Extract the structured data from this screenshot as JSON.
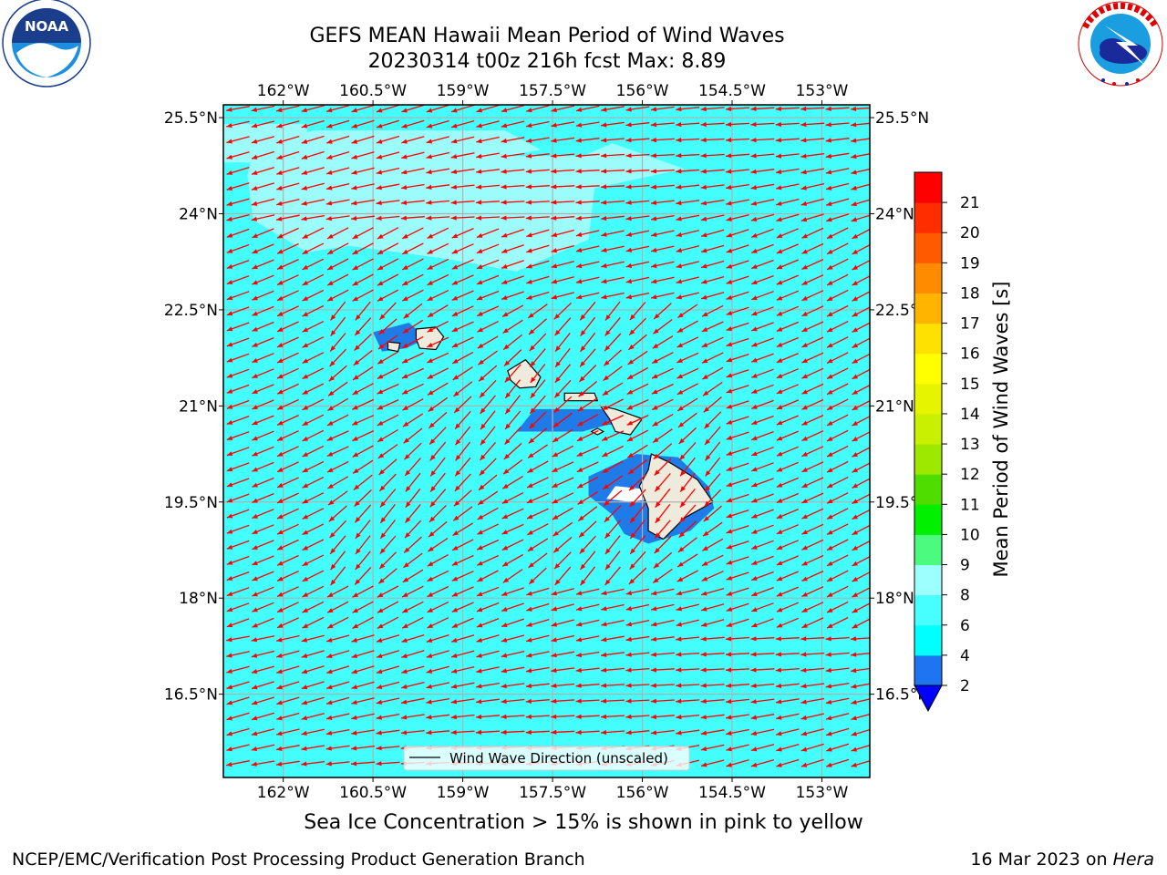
{
  "header": {
    "title_line1": "GEFS MEAN Hawaii Mean Period of Wind Waves",
    "title_line2": "20230314 t00z 216h fcst   Max: 8.89"
  },
  "logos": {
    "left": {
      "text": "NOAA",
      "ring_text": "NATIONAL OCEANIC AND ATMOSPHERIC ADMINISTRATION · U.S. DEPARTMENT OF COMMERCE"
    },
    "right": {
      "ring_text": "NATIONAL WEATHER SERVICE"
    }
  },
  "map": {
    "lon_ticks": [
      "162°W",
      "160.5°W",
      "159°W",
      "157.5°W",
      "156°W",
      "154.5°W",
      "153°W"
    ],
    "lat_ticks": [
      "25.5°N",
      "24°N",
      "22.5°N",
      "21°N",
      "19.5°N",
      "18°N",
      "16.5°N"
    ],
    "lon_values": [
      -162,
      -160.5,
      -159,
      -157.5,
      -156,
      -154.5,
      -153
    ],
    "lat_values": [
      25.5,
      24,
      22.5,
      21,
      19.5,
      18,
      16.5
    ],
    "lon_range": [
      -163,
      -152.2
    ],
    "lat_range": [
      15.2,
      25.7
    ],
    "ocean_color": "#44fefe",
    "light_color": "#9cfcfc",
    "dark_color": "#1f7be8",
    "land_color": "#efebdc",
    "arrow_color": "#ff0000",
    "grid": true,
    "legend": "Wind Wave Direction (unscaled)"
  },
  "colorbar": {
    "label": "Mean Period of Wind Waves [s]",
    "ticks": [
      "2",
      "4",
      "6",
      "8",
      "9",
      "10",
      "11",
      "12",
      "13",
      "14",
      "15",
      "16",
      "17",
      "18",
      "19",
      "20",
      "21"
    ],
    "colors": [
      "#1f74f2",
      "#00ffff",
      "#47ffff",
      "#9effff",
      "#4dfa80",
      "#00f000",
      "#4fdd00",
      "#9ee800",
      "#c8f000",
      "#e6f400",
      "#ffff00",
      "#ffe100",
      "#ffb400",
      "#ff8c00",
      "#ff5a00",
      "#ff2d00",
      "#ff0000"
    ],
    "under_color": "#0000ff"
  },
  "note": "Sea Ice Concentration > 15% is shown in pink to yellow",
  "footer": {
    "left": "NCEP/EMC/Verification Post Processing Product Generation Branch",
    "right_date": "16 Mar 2023 on ",
    "right_machine": "Hera"
  }
}
